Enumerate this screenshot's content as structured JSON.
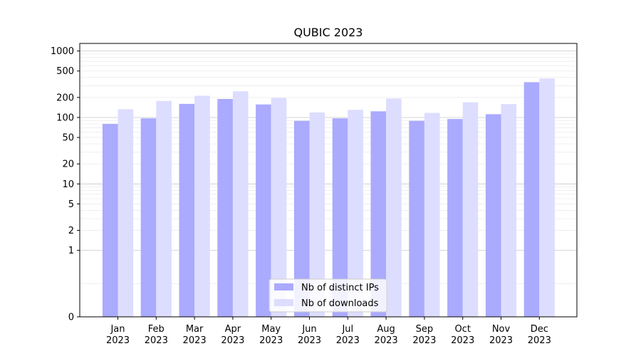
{
  "chart_data": {
    "type": "bar",
    "title": "QUBIC 2023",
    "xlabel": "",
    "ylabel": "",
    "y_scale": "symlog",
    "ylim": [
      0,
      1300
    ],
    "y_ticks": [
      0,
      1,
      2,
      5,
      10,
      20,
      50,
      100,
      200,
      500,
      1000
    ],
    "y_tick_labels": [
      "0",
      "1",
      "2",
      "5",
      "10",
      "20",
      "50",
      "100",
      "200",
      "500",
      "1000"
    ],
    "categories": [
      "Jan\n2023",
      "Feb\n2023",
      "Mar\n2023",
      "Apr\n2023",
      "May\n2023",
      "Jun\n2023",
      "Jul\n2023",
      "Aug\n2023",
      "Sep\n2023",
      "Oct\n2023",
      "Nov\n2023",
      "Dec\n2023"
    ],
    "series": [
      {
        "name": "Nb of distinct IPs",
        "color": "#aaaaff",
        "values": [
          80,
          97,
          160,
          190,
          157,
          89,
          97,
          124,
          89,
          95,
          112,
          340
        ]
      },
      {
        "name": "Nb of downloads",
        "color": "#ddddff",
        "values": [
          133,
          177,
          212,
          248,
          197,
          119,
          130,
          193,
          117,
          169,
          159,
          385
        ]
      }
    ],
    "grid": true,
    "legend_position": "bottom-center"
  }
}
